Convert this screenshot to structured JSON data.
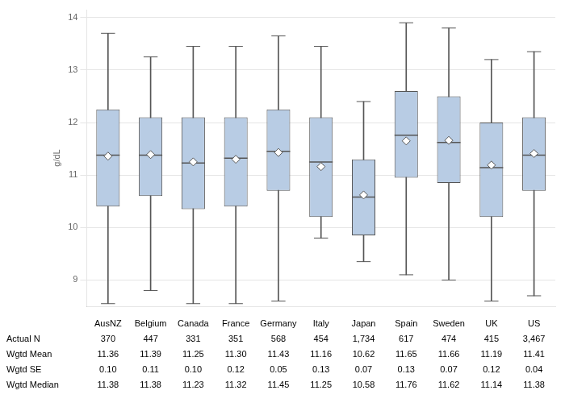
{
  "chart_data": {
    "type": "box",
    "ylabel": "g/dL",
    "categories": [
      "AusNZ",
      "Belgium",
      "Canada",
      "France",
      "Germany",
      "Italy",
      "Japan",
      "Spain",
      "Sweden",
      "UK",
      "US"
    ],
    "q1": [
      10.4,
      10.6,
      10.35,
      10.4,
      10.7,
      10.2,
      9.85,
      10.95,
      10.85,
      10.2,
      10.7
    ],
    "q3": [
      12.25,
      12.1,
      12.1,
      12.1,
      12.25,
      12.1,
      11.3,
      12.6,
      12.5,
      12.0,
      12.1
    ],
    "median": [
      11.38,
      11.38,
      11.23,
      11.32,
      11.45,
      11.25,
      10.58,
      11.76,
      11.62,
      11.14,
      11.38
    ],
    "whisker_low": [
      8.55,
      8.8,
      8.55,
      8.55,
      8.6,
      9.8,
      9.35,
      9.1,
      9.0,
      8.6,
      8.7
    ],
    "whisker_high": [
      13.7,
      13.25,
      13.45,
      13.45,
      13.65,
      13.45,
      12.4,
      13.9,
      13.8,
      13.2,
      13.35
    ],
    "mean": [
      11.36,
      11.39,
      11.25,
      11.3,
      11.43,
      11.16,
      10.62,
      11.65,
      11.66,
      11.19,
      11.41
    ],
    "color": "#b8cce4",
    "ylim": [
      8.5,
      14.15
    ],
    "yticks": [
      9,
      10,
      11,
      12,
      13,
      14
    ],
    "grid": true,
    "tick_labels": "y",
    "table": [
      {
        "name": "Actual N",
        "values": [
          370,
          447,
          331,
          351,
          568,
          454,
          1734,
          617,
          474,
          415,
          3467
        ],
        "value_labels": [
          "370",
          "447",
          "331",
          "351",
          "568",
          "454",
          "1,734",
          "617",
          "474",
          "415",
          "3,467"
        ]
      },
      {
        "name": "Wgtd Mean",
        "values": [
          11.36,
          11.39,
          11.25,
          11.3,
          11.43,
          11.16,
          10.62,
          11.65,
          11.66,
          11.19,
          11.41
        ],
        "value_labels": [
          "11.36",
          "11.39",
          "11.25",
          "11.30",
          "11.43",
          "11.16",
          "10.62",
          "11.65",
          "11.66",
          "11.19",
          "11.41"
        ]
      },
      {
        "name": "Wgtd SE",
        "values": [
          0.1,
          0.11,
          0.1,
          0.12,
          0.05,
          0.13,
          0.07,
          0.13,
          0.07,
          0.12,
          0.04
        ],
        "value_labels": [
          "0.10",
          "0.11",
          "0.10",
          "0.12",
          "0.05",
          "0.13",
          "0.07",
          "0.13",
          "0.07",
          "0.12",
          "0.04"
        ]
      },
      {
        "name": "Wgtd Median",
        "values": [
          11.38,
          11.38,
          11.23,
          11.32,
          11.45,
          11.25,
          10.58,
          11.76,
          11.62,
          11.14,
          11.38
        ],
        "value_labels": [
          "11.38",
          "11.38",
          "11.23",
          "11.32",
          "11.45",
          "11.25",
          "10.58",
          "11.76",
          "11.62",
          "11.14",
          "11.38"
        ]
      }
    ]
  }
}
